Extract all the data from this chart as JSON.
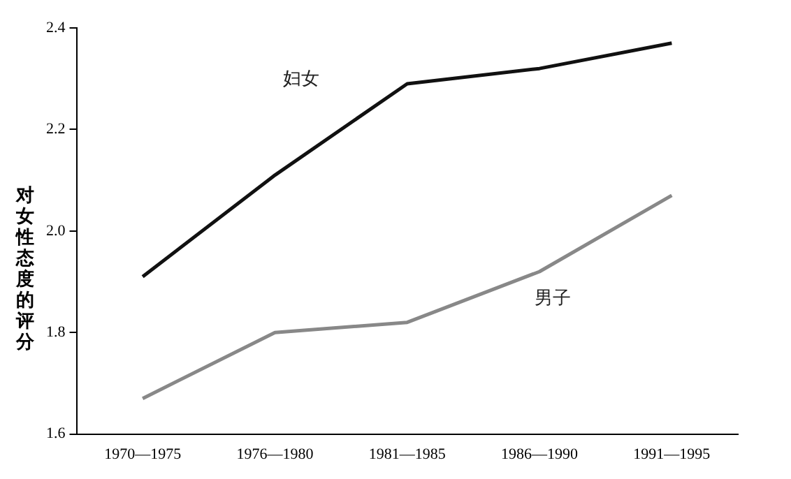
{
  "chart_data": {
    "type": "line",
    "ylabel": "对女性态度的评分",
    "categories": [
      "1970—1975",
      "1976—1980",
      "1981—1985",
      "1986—1990",
      "1991—1995"
    ],
    "series": [
      {
        "name": "妇女",
        "color": "#111111",
        "values": [
          1.91,
          2.11,
          2.29,
          2.32,
          2.37
        ]
      },
      {
        "name": "男子",
        "color": "#888888",
        "values": [
          1.67,
          1.8,
          1.82,
          1.92,
          2.07
        ]
      }
    ],
    "ylim": [
      1.6,
      2.4
    ],
    "yticks": [
      1.6,
      1.8,
      {
        "value": 2.0,
        "label": "2.0"
      },
      2.2,
      2.4
    ],
    "grid": false,
    "legend": false,
    "marker": "none",
    "line_style": "solid"
  }
}
